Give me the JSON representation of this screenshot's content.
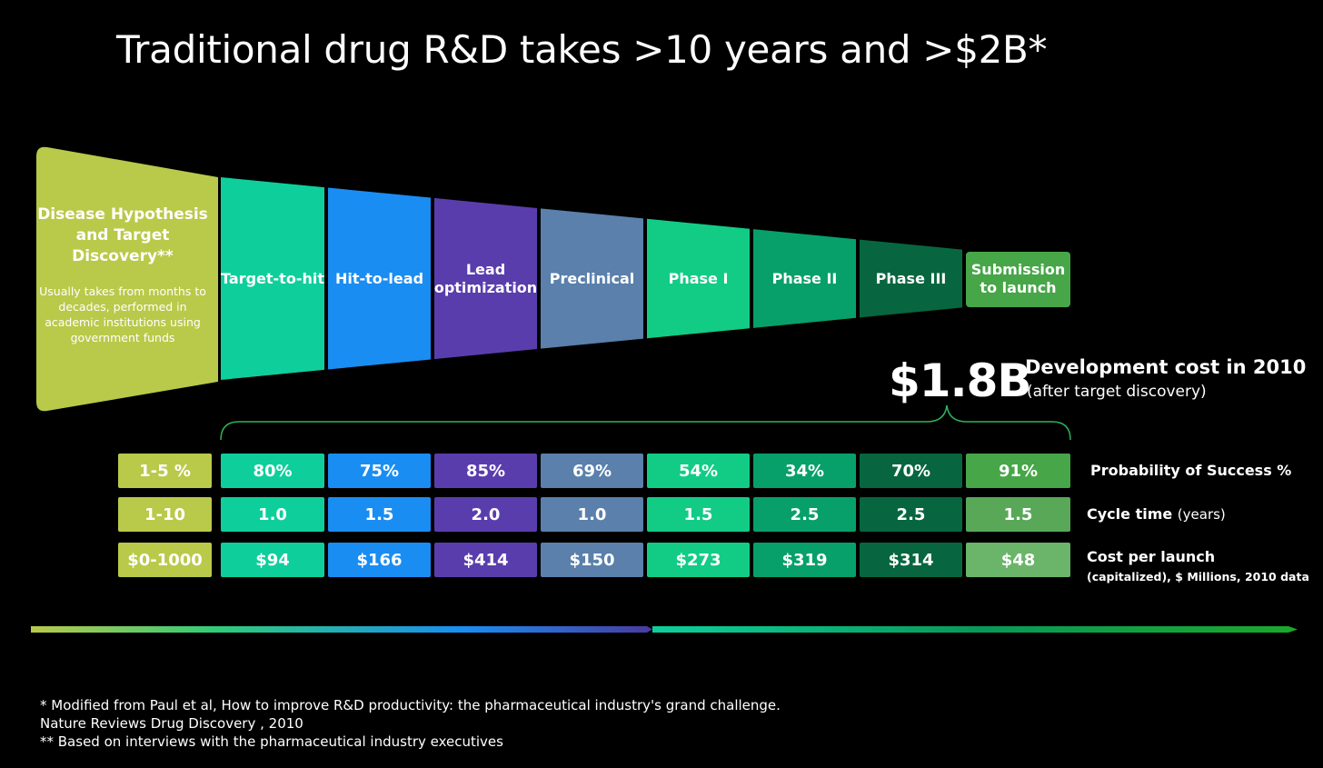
{
  "title": "Traditional drug R&D takes >10 years and >$2B*",
  "discovery": {
    "title": "Disease Hypothesis and Target Discovery**",
    "note": "Usually takes from months to decades, performed in academic institutions using government funds",
    "color": "#b9c94a"
  },
  "stages": [
    {
      "label": "Target-to-hit",
      "color": "#0ecf9c"
    },
    {
      "label": "Hit-to-lead",
      "color": "#1a8df2"
    },
    {
      "label": "Lead optimization",
      "color": "#5a3dad"
    },
    {
      "label": "Preclinical",
      "color": "#5a80ab"
    },
    {
      "label": "Phase I",
      "color": "#12cc86"
    },
    {
      "label": "Phase II",
      "color": "#07a06a"
    },
    {
      "label": "Phase III",
      "color": "#07663f"
    },
    {
      "label": "Submission to launch",
      "color": "#47a648"
    }
  ],
  "cost_summary": {
    "value": "$1.8B",
    "description": "Development cost in 2010",
    "note": "(after target discovery)"
  },
  "rows": [
    {
      "label": "Probability of Success %",
      "discovery_value": "1-5 %",
      "values": [
        "80%",
        "75%",
        "85%",
        "69%",
        "54%",
        "34%",
        "70%",
        "91%"
      ]
    },
    {
      "label": "Cycle time",
      "label_suffix": "(years)",
      "discovery_value": "1-10",
      "values": [
        "1.0",
        "1.5",
        "2.0",
        "1.0",
        "1.5",
        "2.5",
        "2.5",
        "1.5"
      ]
    },
    {
      "label": "Cost per launch",
      "label_sub": "(capitalized), $ Millions, 2010 data",
      "discovery_value": "$0-1000",
      "values": [
        "$94",
        "$166",
        "$414",
        "$150",
        "$273",
        "$319",
        "$314",
        "$48"
      ]
    }
  ],
  "footnotes": [
    "* Modified from Paul et al, How to improve R&D productivity: the pharmaceutical industry's grand challenge.",
    "Nature Reviews Drug Discovery , 2010",
    "** Based on interviews with the pharmaceutical industry executives"
  ]
}
